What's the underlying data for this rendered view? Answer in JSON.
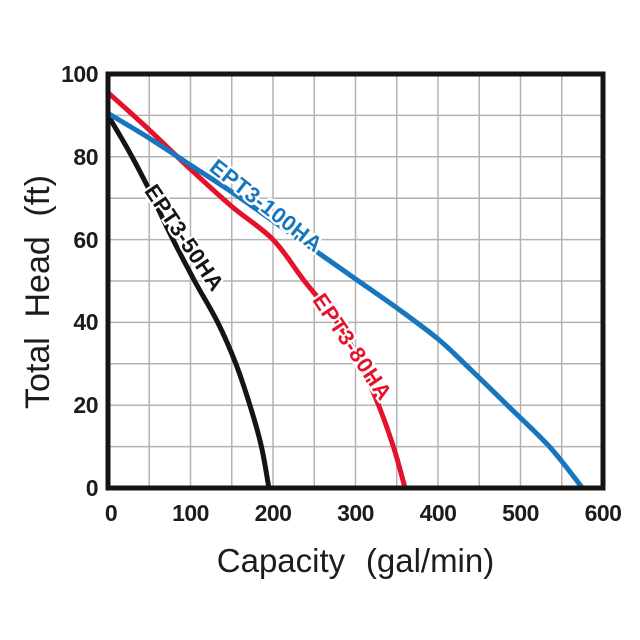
{
  "colors": {
    "background": "#ffffff",
    "grid": "#b3b3b3",
    "plot_border": "#141414",
    "text": "#1c1c1c",
    "series_black": "#141414",
    "series_red": "#e5122d",
    "series_blue": "#1976bc"
  },
  "chart_data": {
    "type": "line",
    "title": "",
    "xlabel": "Capacity (gal/min)",
    "ylabel": "Total Head (ft)",
    "xlim": [
      0,
      600
    ],
    "ylim": [
      0,
      100
    ],
    "grid": true,
    "x_grid_step": 50,
    "y_grid_step": 10,
    "x_ticks": [
      0,
      100,
      200,
      300,
      400,
      500,
      600
    ],
    "y_ticks": [
      0,
      20,
      40,
      60,
      80,
      100
    ],
    "legend_position": "labels-on-curves",
    "series": [
      {
        "name": "EPT3-50HA",
        "color": "#141414",
        "points": [
          [
            0,
            90
          ],
          [
            25,
            81.5
          ],
          [
            50,
            72
          ],
          [
            75,
            61.5
          ],
          [
            105,
            50
          ],
          [
            133,
            40
          ],
          [
            155,
            30
          ],
          [
            172,
            20
          ],
          [
            186,
            10
          ],
          [
            195,
            0
          ]
        ]
      },
      {
        "name": "EPT3-80HA",
        "color": "#e5122d",
        "points": [
          [
            0,
            95.5
          ],
          [
            50,
            86.5
          ],
          [
            100,
            77
          ],
          [
            150,
            68
          ],
          [
            200,
            60
          ],
          [
            238,
            50
          ],
          [
            278,
            40
          ],
          [
            306,
            30
          ],
          [
            328,
            20
          ],
          [
            346,
            10
          ],
          [
            360,
            0
          ]
        ]
      },
      {
        "name": "EPT3-100HA",
        "color": "#1976bc",
        "points": [
          [
            0,
            90.5
          ],
          [
            50,
            84.5
          ],
          [
            100,
            78
          ],
          [
            150,
            71.5
          ],
          [
            200,
            64.5
          ],
          [
            250,
            57.5
          ],
          [
            300,
            50.5
          ],
          [
            350,
            43.5
          ],
          [
            400,
            36
          ],
          [
            435,
            29.5
          ],
          [
            484,
            20
          ],
          [
            535,
            10
          ],
          [
            575,
            0
          ]
        ]
      }
    ]
  }
}
